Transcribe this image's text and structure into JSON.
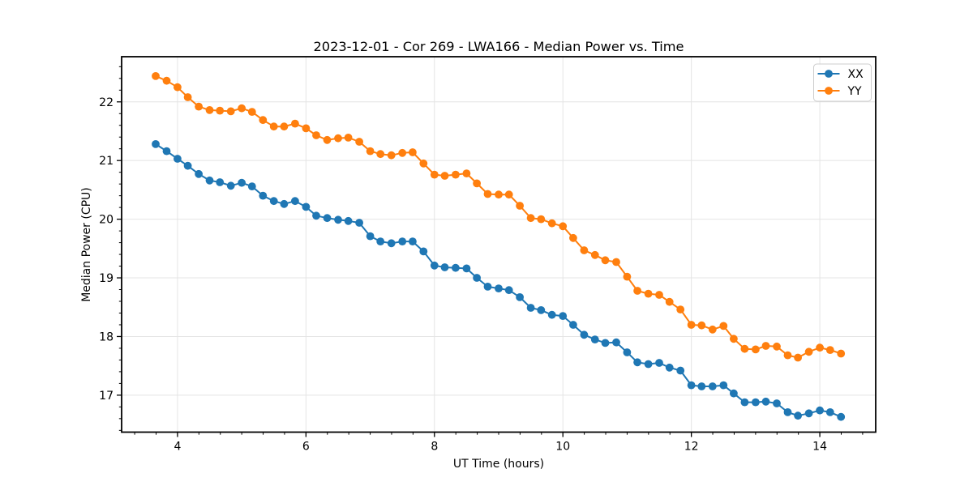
{
  "figure": {
    "title": "2023-12-01 - Cor 269 - LWA166 - Median Power vs. Time"
  },
  "chart_data": {
    "type": "line",
    "title": "2023-12-01 - Cor 269 - LWA166 - Median Power vs. Time",
    "xlabel": "UT Time (hours)",
    "ylabel": "Median Power (CPU)",
    "xlim": [
      3.13,
      14.87
    ],
    "ylim": [
      16.37,
      22.77
    ],
    "x_ticks": [
      4,
      6,
      8,
      10,
      12,
      14
    ],
    "x_tick_labels": [
      "4",
      "6",
      "8",
      "10",
      "12",
      "14"
    ],
    "y_ticks": [
      17,
      18,
      19,
      20,
      21,
      22
    ],
    "y_tick_labels": [
      "17",
      "18",
      "19",
      "20",
      "21",
      "22"
    ],
    "x_minor_tick_step": 0.3333,
    "y_minor_tick_step": 0.2,
    "grid": true,
    "grid_color": "#e4e4e4",
    "legend_position": "upper right",
    "x": [
      3.66,
      3.83,
      4.0,
      4.16,
      4.33,
      4.5,
      4.66,
      4.83,
      5.0,
      5.16,
      5.33,
      5.5,
      5.66,
      5.83,
      6.0,
      6.16,
      6.33,
      6.5,
      6.66,
      6.83,
      7.0,
      7.16,
      7.33,
      7.5,
      7.66,
      7.83,
      8.0,
      8.16,
      8.33,
      8.5,
      8.66,
      8.83,
      9.0,
      9.16,
      9.33,
      9.5,
      9.66,
      9.83,
      10.0,
      10.16,
      10.33,
      10.5,
      10.66,
      10.83,
      11.0,
      11.16,
      11.33,
      11.5,
      11.66,
      11.83,
      12.0,
      12.16,
      12.33,
      12.5,
      12.66,
      12.83,
      13.0,
      13.16,
      13.33,
      13.5,
      13.66,
      13.83,
      14.0,
      14.16,
      14.33
    ],
    "series": [
      {
        "name": "XX",
        "color": "#1f77b4",
        "values": [
          21.28,
          21.16,
          21.03,
          20.91,
          20.77,
          20.66,
          20.63,
          20.57,
          20.62,
          20.56,
          20.4,
          20.31,
          20.26,
          20.31,
          20.21,
          20.06,
          20.02,
          19.99,
          19.97,
          19.94,
          19.71,
          19.62,
          19.59,
          19.62,
          19.62,
          19.45,
          19.21,
          19.18,
          19.17,
          19.16,
          19.0,
          18.85,
          18.82,
          18.79,
          18.67,
          18.49,
          18.45,
          18.37,
          18.35,
          18.2,
          18.03,
          17.95,
          17.89,
          17.9,
          17.73,
          17.56,
          17.53,
          17.55,
          17.47,
          17.42,
          17.17,
          17.15,
          17.15,
          17.17,
          17.03,
          16.88,
          16.88,
          16.89,
          16.86,
          16.71,
          16.65,
          16.69,
          16.74,
          16.71,
          16.63
        ]
      },
      {
        "name": "YY",
        "color": "#ff7f0e",
        "values": [
          22.44,
          22.36,
          22.25,
          22.08,
          21.92,
          21.86,
          21.85,
          21.84,
          21.89,
          21.83,
          21.69,
          21.58,
          21.58,
          21.63,
          21.55,
          21.43,
          21.35,
          21.38,
          21.39,
          21.32,
          21.16,
          21.11,
          21.09,
          21.13,
          21.14,
          20.95,
          20.76,
          20.74,
          20.76,
          20.78,
          20.61,
          20.43,
          20.42,
          20.42,
          20.23,
          20.02,
          20.0,
          19.93,
          19.88,
          19.68,
          19.47,
          19.39,
          19.3,
          19.27,
          19.02,
          18.78,
          18.73,
          18.71,
          18.59,
          18.46,
          18.2,
          18.19,
          18.12,
          18.18,
          17.96,
          17.79,
          17.78,
          17.84,
          17.83,
          17.68,
          17.64,
          17.74,
          17.81,
          17.77,
          17.71
        ]
      }
    ]
  },
  "legend": {
    "items": [
      {
        "label": "XX",
        "color": "#1f77b4"
      },
      {
        "label": "YY",
        "color": "#ff7f0e"
      }
    ]
  }
}
